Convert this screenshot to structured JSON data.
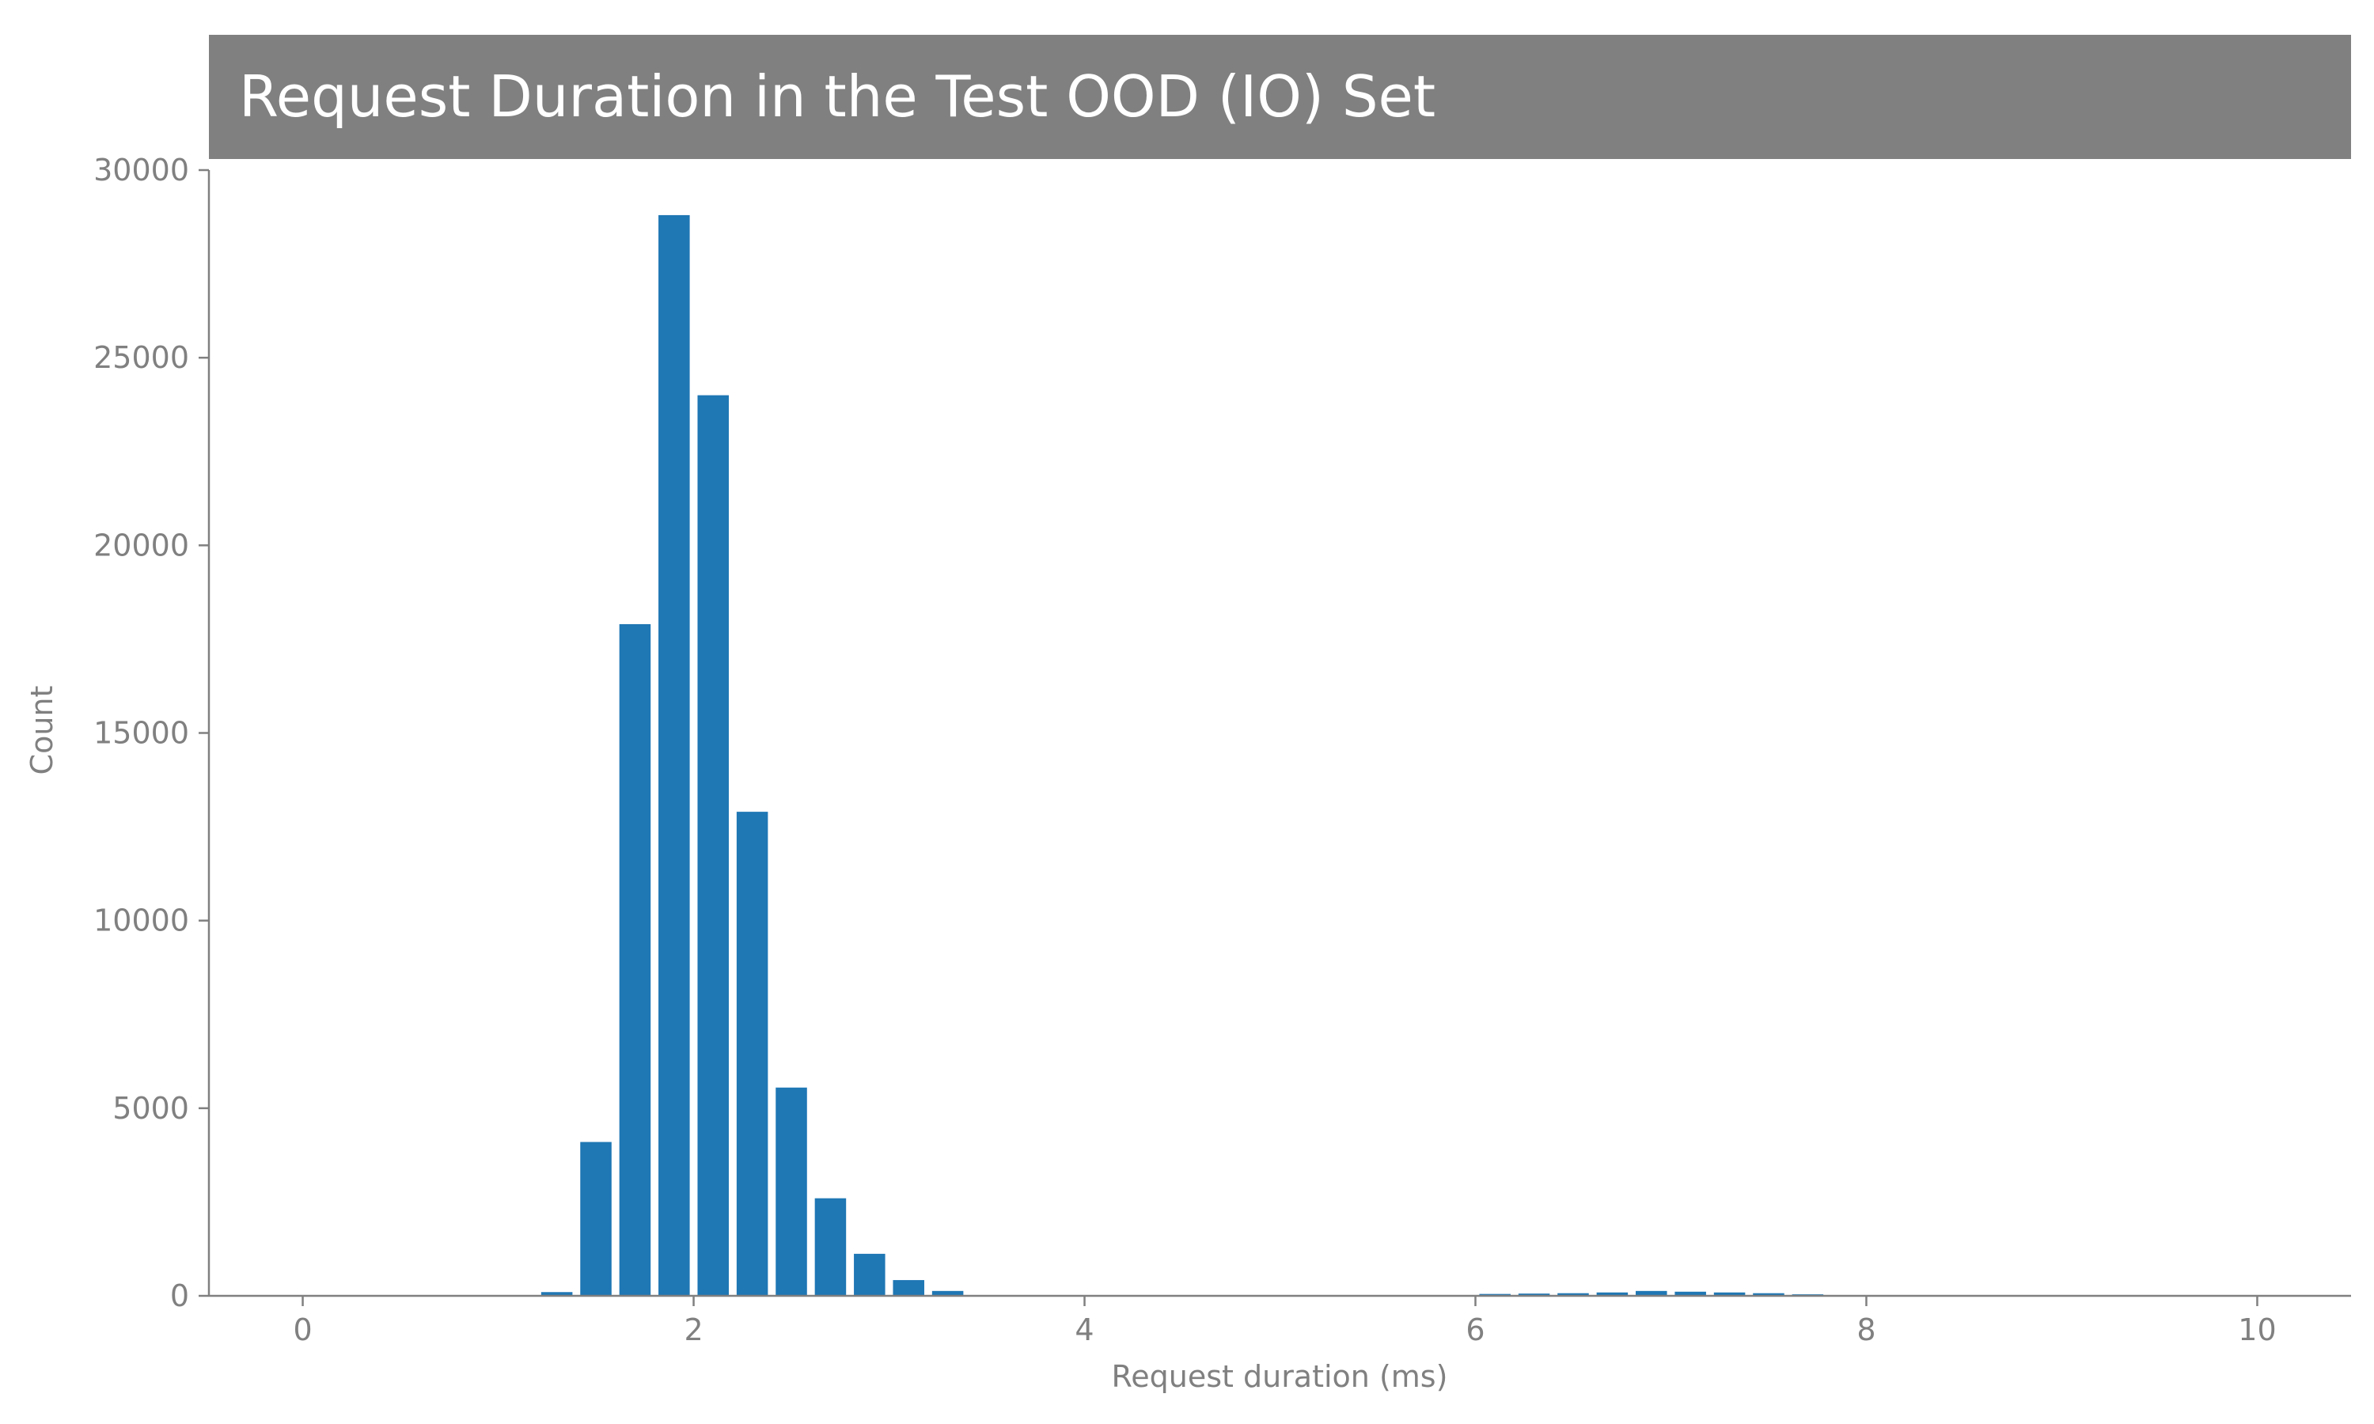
{
  "chart_data": {
    "type": "bar",
    "title": "Request Duration in the Test OOD (IO) Set",
    "xlabel": "Request duration (ms)",
    "ylabel": "Count",
    "xlim": [
      -0.48,
      10.48
    ],
    "ylim": [
      0,
      30000
    ],
    "xticks": [
      0,
      2,
      4,
      6,
      8,
      10
    ],
    "yticks": [
      0,
      5000,
      10000,
      15000,
      20000,
      25000,
      30000
    ],
    "bar_width": 0.16,
    "x": [
      1.3,
      1.5,
      1.7,
      1.9,
      2.1,
      2.3,
      2.5,
      2.7,
      2.9,
      3.1,
      3.3,
      5.9,
      6.1,
      6.3,
      6.5,
      6.7,
      6.9,
      7.1,
      7.3,
      7.5,
      7.7,
      7.9
    ],
    "values": [
      100,
      4100,
      17900,
      28800,
      24000,
      12900,
      5550,
      2600,
      1120,
      420,
      130,
      20,
      50,
      60,
      70,
      90,
      130,
      110,
      90,
      70,
      40,
      15
    ],
    "grid": false,
    "colors": {
      "bar": "#1f77b4",
      "axis": "#808080",
      "text": "#808080",
      "title_bg": "#808080",
      "title_text": "#ffffff"
    }
  }
}
